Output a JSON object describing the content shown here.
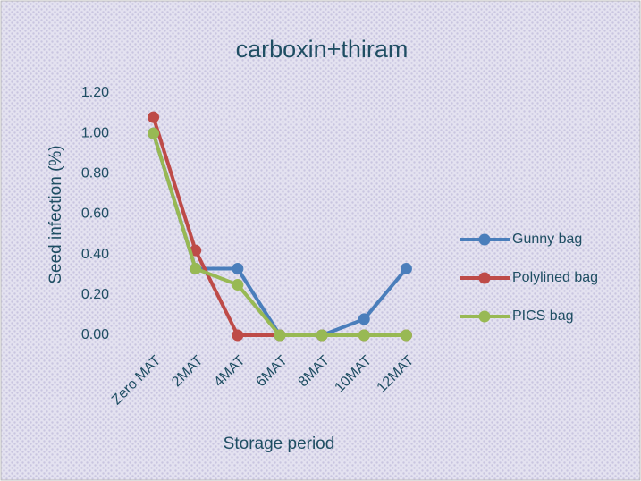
{
  "chart_data": {
    "type": "line",
    "title": "carboxin+thiram",
    "x_label": "Storage period",
    "y_label": "Seed infection (%)",
    "categories": [
      "Zero MAT",
      "2MAT",
      "4MAT",
      "6MAT",
      "8MAT",
      "10MAT",
      "12MAT"
    ],
    "series": [
      {
        "name": "Gunny bag",
        "color": "#4a7ebb",
        "values": [
          1.0,
          0.33,
          0.33,
          0,
          0,
          0.08,
          0.33
        ]
      },
      {
        "name": "Polylined bag",
        "color": "#be4b48",
        "values": [
          1.08,
          0.42,
          0,
          0,
          0,
          0,
          0
        ]
      },
      {
        "name": "PICS bag",
        "color": "#98b954",
        "values": [
          1.0,
          0.33,
          0.25,
          0,
          0,
          0,
          0
        ]
      }
    ],
    "ylim": [
      0,
      1.2
    ],
    "yticks": [
      {
        "value": 0,
        "label": "0.00"
      },
      {
        "value": 0.2,
        "label": "0.20"
      },
      {
        "value": 0.4,
        "label": "0.40"
      },
      {
        "value": 0.6,
        "label": "0.60"
      },
      {
        "value": 0.8,
        "label": "0.80"
      },
      {
        "value": 1.0,
        "label": "1.00"
      },
      {
        "value": 1.2,
        "label": "1.20"
      }
    ],
    "legend": "right",
    "grid": false
  }
}
